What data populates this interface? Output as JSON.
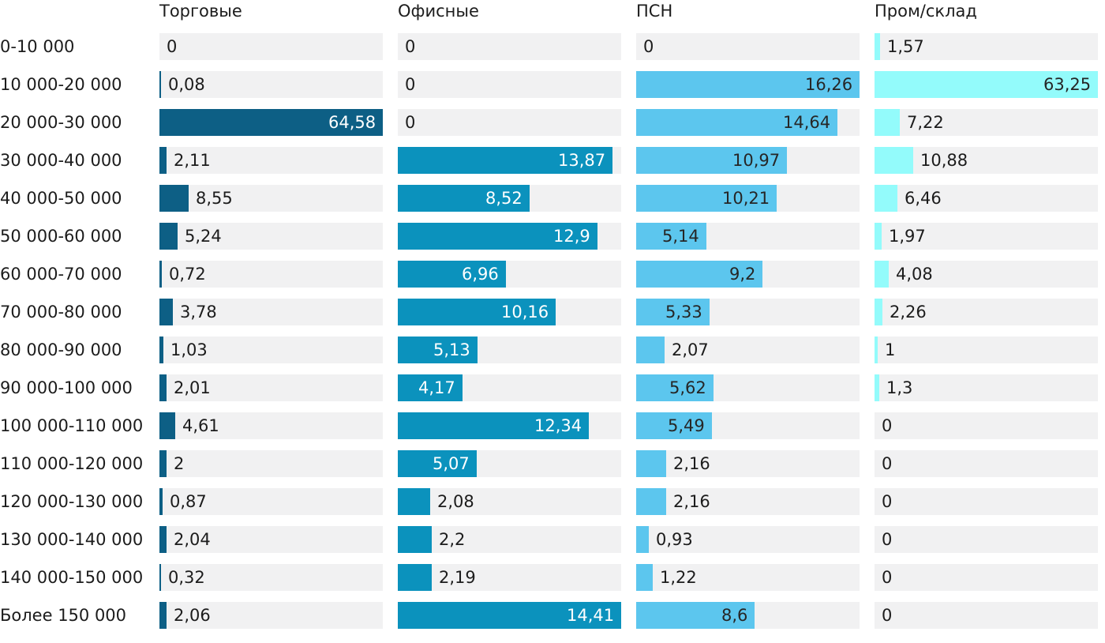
{
  "chart_data": {
    "type": "bar",
    "orientation": "horizontal",
    "layout": "small-multiples-4-columns",
    "value_scaling": "per-column-max",
    "decimal_separator": ",",
    "grid": "off",
    "cell_background": "#f1f1f2",
    "text_color": "#1c1c1c",
    "categories": [
      "0-10 000",
      "10 000-20 000",
      "20 000-30 000",
      "30 000-40 000",
      "40 000-50 000",
      "50 000-60 000",
      "60 000-70 000",
      "70 000-80 000",
      "80 000-90 000",
      "90 000-100 000",
      "100 000-110 000",
      "110 000-120 000",
      "120 000-130 000",
      "130 000-140 000",
      "140 000-150 000",
      "Более 150 000"
    ],
    "series": [
      {
        "name": "Торговые",
        "color": "#0d5f85",
        "label_color_inside": "#ffffff",
        "values": [
          0,
          0.08,
          64.58,
          2.11,
          8.55,
          5.24,
          0.72,
          3.78,
          1.03,
          2.01,
          4.61,
          2,
          0.87,
          2.04,
          0.32,
          2.06
        ]
      },
      {
        "name": "Офисные",
        "color": "#0b92bd",
        "label_color_inside": "#ffffff",
        "values": [
          0,
          0,
          0,
          13.87,
          8.52,
          12.9,
          6.96,
          10.16,
          5.13,
          4.17,
          12.34,
          5.07,
          2.08,
          2.2,
          2.19,
          14.41
        ]
      },
      {
        "name": "ПСН",
        "color": "#5cc6ee",
        "label_color_inside": "#262626",
        "values": [
          0,
          16.26,
          14.64,
          10.97,
          10.21,
          5.14,
          9.2,
          5.33,
          2.07,
          5.62,
          5.49,
          2.16,
          2.16,
          0.93,
          1.22,
          8.6
        ]
      },
      {
        "name": "Пром/склад",
        "color": "#93fbfb",
        "label_color_inside": "#262626",
        "values": [
          1.57,
          63.25,
          7.22,
          10.88,
          6.46,
          1.97,
          4.08,
          2.26,
          1,
          1.3,
          0,
          0,
          0,
          0,
          0,
          0
        ]
      }
    ]
  }
}
